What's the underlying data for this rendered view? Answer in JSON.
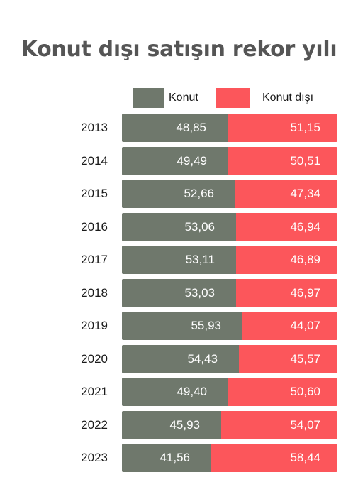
{
  "title": "Konut dışı satışın rekor yılı",
  "legend": [
    {
      "label": "Konut",
      "color": "#6f786c"
    },
    {
      "label": "Konut dışı",
      "color": "#fc565b"
    }
  ],
  "chart_data": {
    "type": "bar",
    "stacked": true,
    "orientation": "horizontal",
    "title": "Konut dışı satışın rekor yılı",
    "categories": [
      "2013",
      "2014",
      "2015",
      "2016",
      "2017",
      "2018",
      "2019",
      "2020",
      "2021",
      "2022",
      "2023"
    ],
    "series": [
      {
        "name": "Konut",
        "color": "#6f786c",
        "values": [
          48.85,
          49.49,
          52.66,
          53.06,
          53.11,
          53.03,
          55.93,
          54.43,
          49.4,
          45.93,
          41.56
        ],
        "labels": [
          "48,85",
          "49,49",
          "52,66",
          "53,06",
          "53,11",
          "53,03",
          "55,93",
          "54,43",
          "49,40",
          "45,93",
          "41,56"
        ]
      },
      {
        "name": "Konut dışı",
        "color": "#fc565b",
        "values": [
          51.15,
          50.51,
          47.34,
          46.94,
          46.89,
          46.97,
          44.07,
          45.57,
          50.6,
          54.07,
          58.44
        ],
        "labels": [
          "51,15",
          "50,51",
          "47,34",
          "46,94",
          "46,89",
          "46,97",
          "44,07",
          "45,57",
          "50,60",
          "54,07",
          "58,44"
        ]
      }
    ],
    "xlim": [
      0,
      100
    ],
    "grid": false,
    "legend_position": "top"
  }
}
